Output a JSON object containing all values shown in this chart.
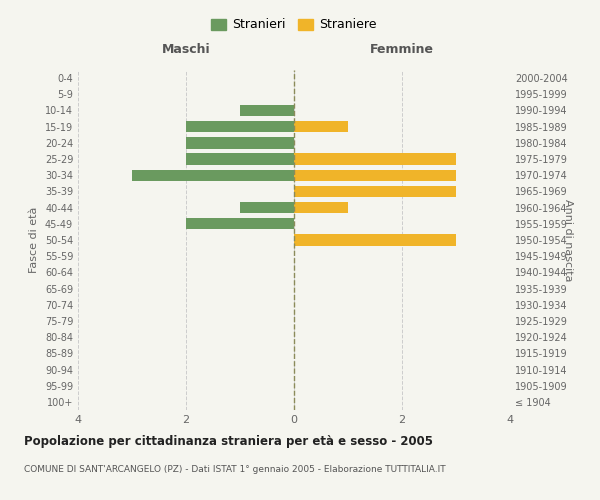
{
  "age_groups": [
    "100+",
    "95-99",
    "90-94",
    "85-89",
    "80-84",
    "75-79",
    "70-74",
    "65-69",
    "60-64",
    "55-59",
    "50-54",
    "45-49",
    "40-44",
    "35-39",
    "30-34",
    "25-29",
    "20-24",
    "15-19",
    "10-14",
    "5-9",
    "0-4"
  ],
  "birth_years": [
    "≤ 1904",
    "1905-1909",
    "1910-1914",
    "1915-1919",
    "1920-1924",
    "1925-1929",
    "1930-1934",
    "1935-1939",
    "1940-1944",
    "1945-1949",
    "1950-1954",
    "1955-1959",
    "1960-1964",
    "1965-1969",
    "1970-1974",
    "1975-1979",
    "1980-1984",
    "1985-1989",
    "1990-1994",
    "1995-1999",
    "2000-2004"
  ],
  "maschi": [
    0,
    0,
    0,
    0,
    0,
    0,
    0,
    0,
    0,
    0,
    0,
    2,
    1,
    0,
    3,
    2,
    2,
    2,
    1,
    0,
    0
  ],
  "femmine": [
    0,
    0,
    0,
    0,
    0,
    0,
    0,
    0,
    0,
    0,
    3,
    0,
    1,
    3,
    3,
    3,
    0,
    1,
    0,
    0,
    0
  ],
  "maschi_color": "#6a9a5f",
  "femmine_color": "#f0b429",
  "title": "Popolazione per cittadinanza straniera per età e sesso - 2005",
  "subtitle": "COMUNE DI SANT'ARCANGELO (PZ) - Dati ISTAT 1° gennaio 2005 - Elaborazione TUTTITALIA.IT",
  "legend_maschi": "Stranieri",
  "legend_femmine": "Straniere",
  "xlabel_left": "Maschi",
  "xlabel_right": "Femmine",
  "ylabel_left": "Fasce di età",
  "ylabel_right": "Anni di nascita",
  "xlim": 4,
  "background_color": "#f5f5ef",
  "grid_color": "#cccccc",
  "center_line_color": "#8b8b5a"
}
